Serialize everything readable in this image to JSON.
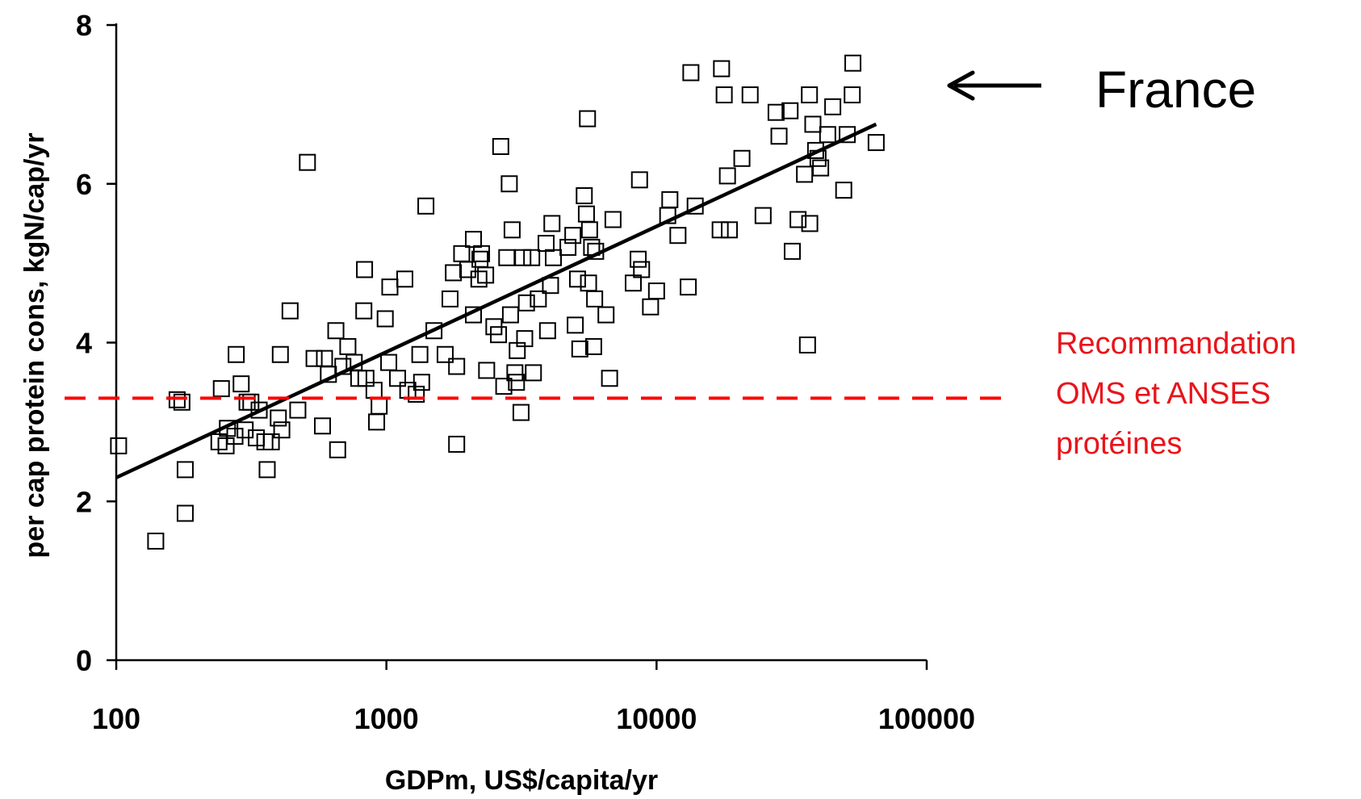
{
  "chart_data": {
    "type": "scatter",
    "xlabel": "GDPm, US$/capita/yr",
    "ylabel": "per cap protein cons, kgN/cap/yr",
    "x_scale": "log",
    "xlim": [
      100,
      100000
    ],
    "ylim": [
      0,
      8
    ],
    "x_ticks": [
      "100",
      "1000",
      "10000",
      "100000"
    ],
    "y_ticks": [
      "0",
      "2",
      "4",
      "6",
      "8"
    ],
    "grid": false,
    "points": [
      [
        102,
        2.7
      ],
      [
        140,
        1.5
      ],
      [
        168,
        3.28
      ],
      [
        175,
        3.25
      ],
      [
        180,
        2.4
      ],
      [
        180,
        1.85
      ],
      [
        240,
        2.75
      ],
      [
        245,
        3.42
      ],
      [
        255,
        2.7
      ],
      [
        258,
        2.92
      ],
      [
        275,
        2.82
      ],
      [
        278,
        3.85
      ],
      [
        290,
        3.48
      ],
      [
        300,
        2.9
      ],
      [
        305,
        3.25
      ],
      [
        315,
        3.25
      ],
      [
        330,
        2.8
      ],
      [
        338,
        3.15
      ],
      [
        355,
        2.75
      ],
      [
        362,
        2.4
      ],
      [
        375,
        2.75
      ],
      [
        398,
        3.05
      ],
      [
        405,
        3.85
      ],
      [
        410,
        2.9
      ],
      [
        440,
        4.4
      ],
      [
        470,
        3.15
      ],
      [
        510,
        6.27
      ],
      [
        540,
        3.8
      ],
      [
        580,
        2.95
      ],
      [
        590,
        3.8
      ],
      [
        610,
        3.6
      ],
      [
        650,
        4.15
      ],
      [
        660,
        2.65
      ],
      [
        690,
        3.7
      ],
      [
        720,
        3.95
      ],
      [
        760,
        3.75
      ],
      [
        790,
        3.55
      ],
      [
        825,
        4.4
      ],
      [
        830,
        4.92
      ],
      [
        840,
        3.55
      ],
      [
        900,
        3.4
      ],
      [
        920,
        3.0
      ],
      [
        940,
        3.2
      ],
      [
        990,
        4.3
      ],
      [
        1020,
        3.75
      ],
      [
        1030,
        4.7
      ],
      [
        1100,
        3.55
      ],
      [
        1170,
        4.8
      ],
      [
        1200,
        3.4
      ],
      [
        1290,
        3.35
      ],
      [
        1330,
        3.85
      ],
      [
        1350,
        3.5
      ],
      [
        1400,
        5.72
      ],
      [
        1500,
        4.15
      ],
      [
        1650,
        3.85
      ],
      [
        1720,
        4.55
      ],
      [
        1770,
        4.88
      ],
      [
        1820,
        3.7
      ],
      [
        1820,
        2.72
      ],
      [
        1900,
        5.12
      ],
      [
        2000,
        4.92
      ],
      [
        2100,
        5.3
      ],
      [
        2100,
        4.35
      ],
      [
        2200,
        4.8
      ],
      [
        2220,
        5.05
      ],
      [
        2250,
        5.12
      ],
      [
        2330,
        4.85
      ],
      [
        2350,
        3.65
      ],
      [
        2500,
        4.2
      ],
      [
        2600,
        4.1
      ],
      [
        2650,
        6.47
      ],
      [
        2720,
        3.45
      ],
      [
        2790,
        5.07
      ],
      [
        2850,
        6.0
      ],
      [
        2880,
        4.35
      ],
      [
        2920,
        5.42
      ],
      [
        2990,
        3.62
      ],
      [
        3030,
        3.5
      ],
      [
        3050,
        3.9
      ],
      [
        3150,
        3.12
      ],
      [
        3200,
        5.07
      ],
      [
        3250,
        4.05
      ],
      [
        3300,
        4.5
      ],
      [
        3450,
        5.07
      ],
      [
        3500,
        3.62
      ],
      [
        3650,
        4.55
      ],
      [
        3900,
        5.25
      ],
      [
        3950,
        4.15
      ],
      [
        4050,
        4.72
      ],
      [
        4100,
        5.5
      ],
      [
        4150,
        5.07
      ],
      [
        4700,
        5.2
      ],
      [
        4900,
        5.35
      ],
      [
        5000,
        4.22
      ],
      [
        5100,
        4.8
      ],
      [
        5200,
        3.92
      ],
      [
        5400,
        5.85
      ],
      [
        5500,
        5.62
      ],
      [
        5550,
        6.82
      ],
      [
        5600,
        4.75
      ],
      [
        5650,
        5.42
      ],
      [
        5750,
        5.2
      ],
      [
        5850,
        3.95
      ],
      [
        5900,
        4.55
      ],
      [
        5950,
        5.15
      ],
      [
        6500,
        4.35
      ],
      [
        6700,
        3.55
      ],
      [
        6900,
        5.55
      ],
      [
        8200,
        4.75
      ],
      [
        8550,
        5.05
      ],
      [
        8650,
        6.05
      ],
      [
        8800,
        4.92
      ],
      [
        9500,
        4.45
      ],
      [
        10000,
        4.65
      ],
      [
        11000,
        5.6
      ],
      [
        11200,
        5.8
      ],
      [
        12000,
        5.35
      ],
      [
        13100,
        4.7
      ],
      [
        13400,
        7.4
      ],
      [
        13900,
        5.72
      ],
      [
        17200,
        5.42
      ],
      [
        17400,
        7.45
      ],
      [
        17800,
        7.12
      ],
      [
        18300,
        6.1
      ],
      [
        18600,
        5.42
      ],
      [
        20700,
        6.32
      ],
      [
        22200,
        7.12
      ],
      [
        24800,
        5.6
      ],
      [
        27700,
        6.9
      ],
      [
        28400,
        6.6
      ],
      [
        31200,
        6.92
      ],
      [
        31800,
        5.15
      ],
      [
        33400,
        5.55
      ],
      [
        35300,
        6.12
      ],
      [
        36200,
        3.97
      ],
      [
        36800,
        7.12
      ],
      [
        36900,
        5.5
      ],
      [
        37900,
        6.75
      ],
      [
        38800,
        6.42
      ],
      [
        39600,
        6.32
      ],
      [
        40500,
        6.2
      ],
      [
        43000,
        6.62
      ],
      [
        44900,
        6.97
      ],
      [
        49300,
        5.92
      ],
      [
        50800,
        6.62
      ],
      [
        53000,
        7.12
      ],
      [
        53300,
        7.52
      ],
      [
        65000,
        6.52
      ]
    ],
    "trend_line": {
      "x": [
        100,
        65000
      ],
      "y": [
        2.3,
        6.75
      ]
    },
    "reference_line": {
      "y": 3.3,
      "color": "#ff0000",
      "style": "dashed"
    },
    "annotations": {
      "france_label": "France",
      "reco_line_1": "Recommandation",
      "reco_line_2": "OMS et ANSES",
      "reco_line_3": "protéines"
    },
    "reco_color": "#e8141b"
  }
}
